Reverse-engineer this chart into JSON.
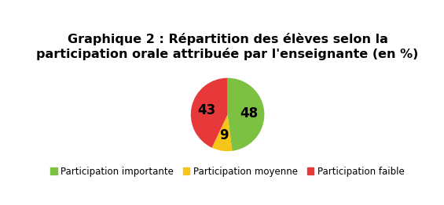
{
  "title": "Graphique 2 : Répartition des élèves selon la\nparticipation orale attribuée par l'enseignante (en %)",
  "slices": [
    48,
    9,
    43
  ],
  "labels": [
    "48",
    "9",
    "43"
  ],
  "colors": [
    "#7DC142",
    "#F5C518",
    "#E8393A"
  ],
  "legend_labels": [
    "Participation importante",
    "Participation moyenne",
    "Participation faible"
  ],
  "startangle": 90,
  "title_fontsize": 11.5,
  "label_fontsize": 12,
  "legend_fontsize": 8.5,
  "background_color": "#ffffff"
}
